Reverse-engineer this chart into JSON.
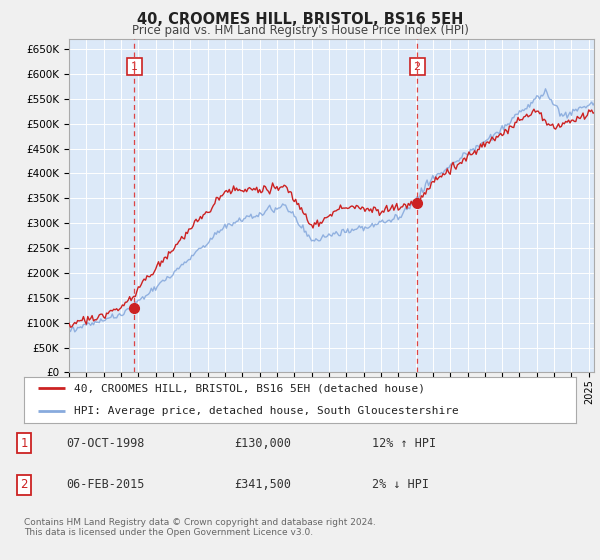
{
  "title": "40, CROOMES HILL, BRISTOL, BS16 5EH",
  "subtitle": "Price paid vs. HM Land Registry's House Price Index (HPI)",
  "plot_bg_color": "#dce9f8",
  "fig_bg_color": "#f0f0f0",
  "yticks": [
    0,
    50000,
    100000,
    150000,
    200000,
    250000,
    300000,
    350000,
    400000,
    450000,
    500000,
    550000,
    600000,
    650000
  ],
  "ytick_labels": [
    "£0",
    "£50K",
    "£100K",
    "£150K",
    "£200K",
    "£250K",
    "£300K",
    "£350K",
    "£400K",
    "£450K",
    "£500K",
    "£550K",
    "£600K",
    "£650K"
  ],
  "sale1_date": 1998.77,
  "sale1_price": 130000,
  "sale2_date": 2015.09,
  "sale2_price": 341500,
  "line_color_red": "#cc2222",
  "line_color_blue": "#88aadd",
  "grid_color": "#ffffff",
  "vline_color": "#dd4444",
  "legend_entries": [
    "40, CROOMES HILL, BRISTOL, BS16 5EH (detached house)",
    "HPI: Average price, detached house, South Gloucestershire"
  ],
  "table_rows": [
    {
      "num": "1",
      "date": "07-OCT-1998",
      "price": "£130,000",
      "hpi": "12% ↑ HPI"
    },
    {
      "num": "2",
      "date": "06-FEB-2015",
      "price": "£341,500",
      "hpi": "2% ↓ HPI"
    }
  ],
  "footer": "Contains HM Land Registry data © Crown copyright and database right 2024.\nThis data is licensed under the Open Government Licence v3.0.",
  "xlim_start": 1995.0,
  "xlim_end": 2025.3,
  "ylim": [
    0,
    670000
  ]
}
